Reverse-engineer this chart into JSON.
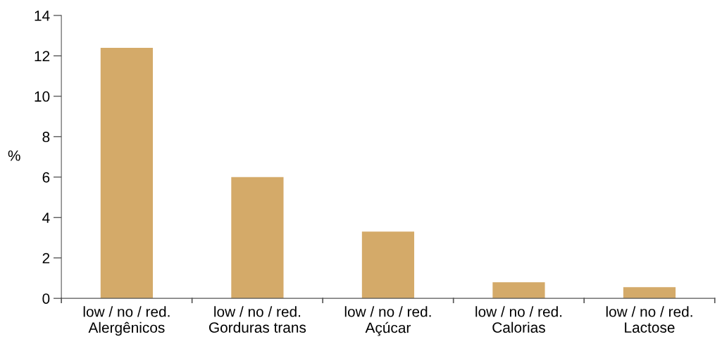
{
  "chart_data": {
    "type": "bar",
    "ylabel": "%",
    "categories": [
      "low / no / red.\nAlergênicos",
      "low / no / red.\nGorduras trans",
      "low / no / red.\nAçúcar",
      "low / no / red.\nCalorias",
      "low / no / red.\nLactose"
    ],
    "values": [
      12.4,
      6.0,
      3.3,
      0.8,
      0.55
    ],
    "color": "#d4aa69",
    "ylim": [
      0,
      14
    ],
    "yticks": [
      0,
      2,
      4,
      6,
      8,
      10,
      12,
      14
    ],
    "grid": false
  }
}
